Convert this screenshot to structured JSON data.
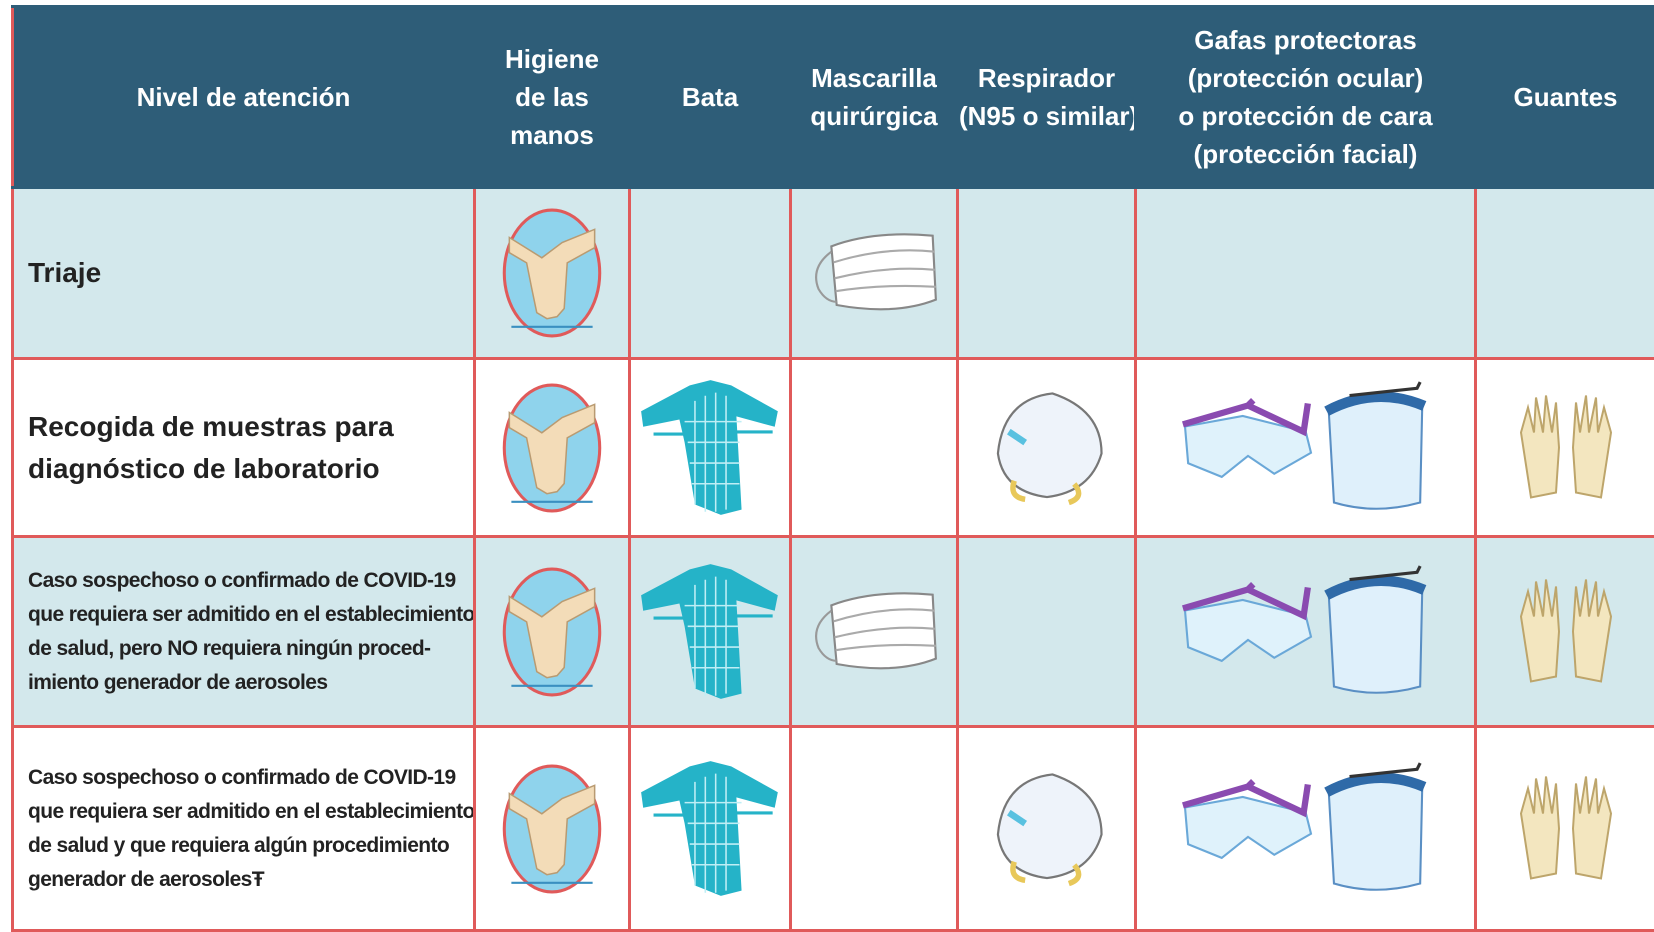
{
  "header": {
    "columns": [
      [
        "Nivel de atención"
      ],
      [
        "Higiene",
        "de las",
        "manos"
      ],
      [
        "Bata"
      ],
      [
        "Mascarilla",
        "quirúrgica"
      ],
      [
        "Respirador",
        "(N95 o similar)"
      ],
      [
        "Gafas protectoras",
        "(protección ocular)",
        "o protección de cara",
        "(protección facial)"
      ],
      [
        "Guantes"
      ]
    ]
  },
  "table": {
    "rows": [
      [
        "Triaje"
      ],
      [
        "Recogida de muestras para",
        "diagnóstico de laboratorio"
      ],
      [
        "Caso sospechoso o confirmado de COVID-19",
        "que requiera ser admitido en el establecimiento",
        "de salud, pero NO requiera ningún proced-",
        "imiento generador de aerosoles"
      ],
      [
        "Caso sospechoso o confirmado de COVID-19",
        "que requiera ser admitido en el establecimiento",
        "de salud y que requiera algún procedimiento",
        "generador de aerosolesŦ"
      ]
    ]
  }
}
